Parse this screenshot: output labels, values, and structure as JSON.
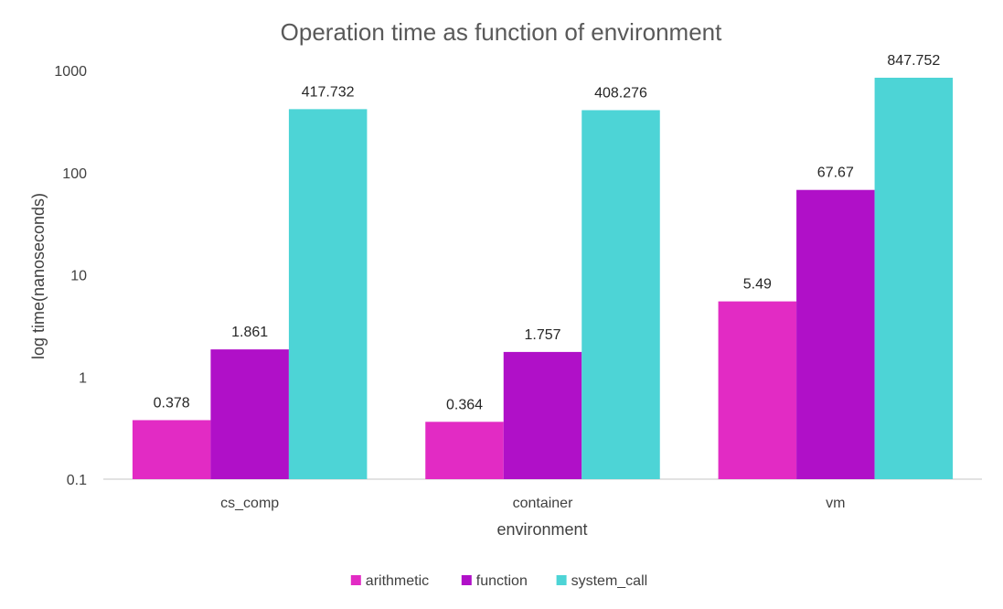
{
  "chart_data": {
    "type": "bar",
    "title": "Operation time as function of environment",
    "xlabel": "environment",
    "ylabel": "log time(nanoseconds)",
    "yscale": "log",
    "ylim": [
      0.1,
      1000
    ],
    "yticks": [
      "0.1",
      "1",
      "10",
      "100",
      "1000"
    ],
    "categories": [
      "cs_comp",
      "container",
      "vm"
    ],
    "series": [
      {
        "name": "arithmetic",
        "color": "#e22bc4",
        "values": [
          0.378,
          0.364,
          5.49
        ],
        "labels": [
          "0.378",
          "0.364",
          "5.49"
        ]
      },
      {
        "name": "function",
        "color": "#b010c8",
        "values": [
          1.861,
          1.757,
          67.67
        ],
        "labels": [
          "1.861",
          "1.757",
          "67.67"
        ]
      },
      {
        "name": "system_call",
        "color": "#4dd4d6",
        "values": [
          417.732,
          408.276,
          847.752
        ],
        "labels": [
          "417.732",
          "408.276",
          "847.752"
        ]
      }
    ],
    "legend": "bottom",
    "grid": false
  }
}
